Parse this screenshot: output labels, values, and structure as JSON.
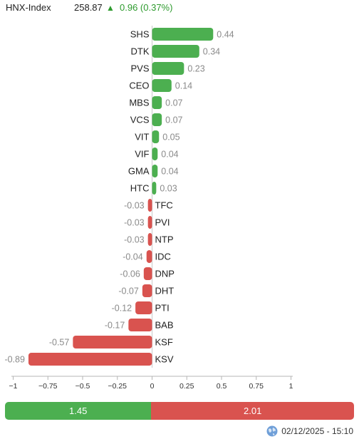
{
  "header": {
    "name": "HNX-Index",
    "value": "258.87",
    "arrow": "▲",
    "change": "0.96 (0.37%)"
  },
  "chart_data": {
    "type": "bar",
    "orientation": "horizontal",
    "categories": [
      "SHS",
      "DTK",
      "PVS",
      "CEO",
      "MBS",
      "VCS",
      "VIT",
      "VIF",
      "GMA",
      "HTC",
      "TFC",
      "PVI",
      "NTP",
      "IDC",
      "DNP",
      "DHT",
      "PTI",
      "BAB",
      "KSF",
      "KSV"
    ],
    "values": [
      0.44,
      0.34,
      0.23,
      0.14,
      0.07,
      0.07,
      0.05,
      0.04,
      0.04,
      0.03,
      -0.03,
      -0.03,
      -0.03,
      -0.04,
      -0.06,
      -0.07,
      -0.12,
      -0.17,
      -0.57,
      -0.89
    ],
    "value_labels": [
      "0.44",
      "0.34",
      "0.23",
      "0.14",
      "0.07",
      "0.07",
      "0.05",
      "0.04",
      "0.04",
      "0.03",
      "-0.03",
      "-0.03",
      "-0.03",
      "-0.04",
      "-0.06",
      "-0.07",
      "-0.12",
      "-0.17",
      "-0.57",
      "-0.89"
    ],
    "xlim": [
      -1,
      1
    ],
    "xticks": [
      -1,
      -0.75,
      -0.5,
      -0.25,
      0,
      0.25,
      0.5,
      0.75,
      1
    ],
    "xtick_labels": [
      "−1",
      "−0.75",
      "−0.5",
      "−0.25",
      "0",
      "0.25",
      "0.5",
      "0.75",
      "1"
    ],
    "colors": {
      "positive": "#4caf50",
      "negative": "#d9534f"
    },
    "grid": false
  },
  "summary": {
    "positive": 1.45,
    "negative": 2.01,
    "positive_label": "1.45",
    "negative_label": "2.01"
  },
  "footer": {
    "timestamp": "02/12/2025 - 15:10",
    "icon": "globe-icon"
  }
}
